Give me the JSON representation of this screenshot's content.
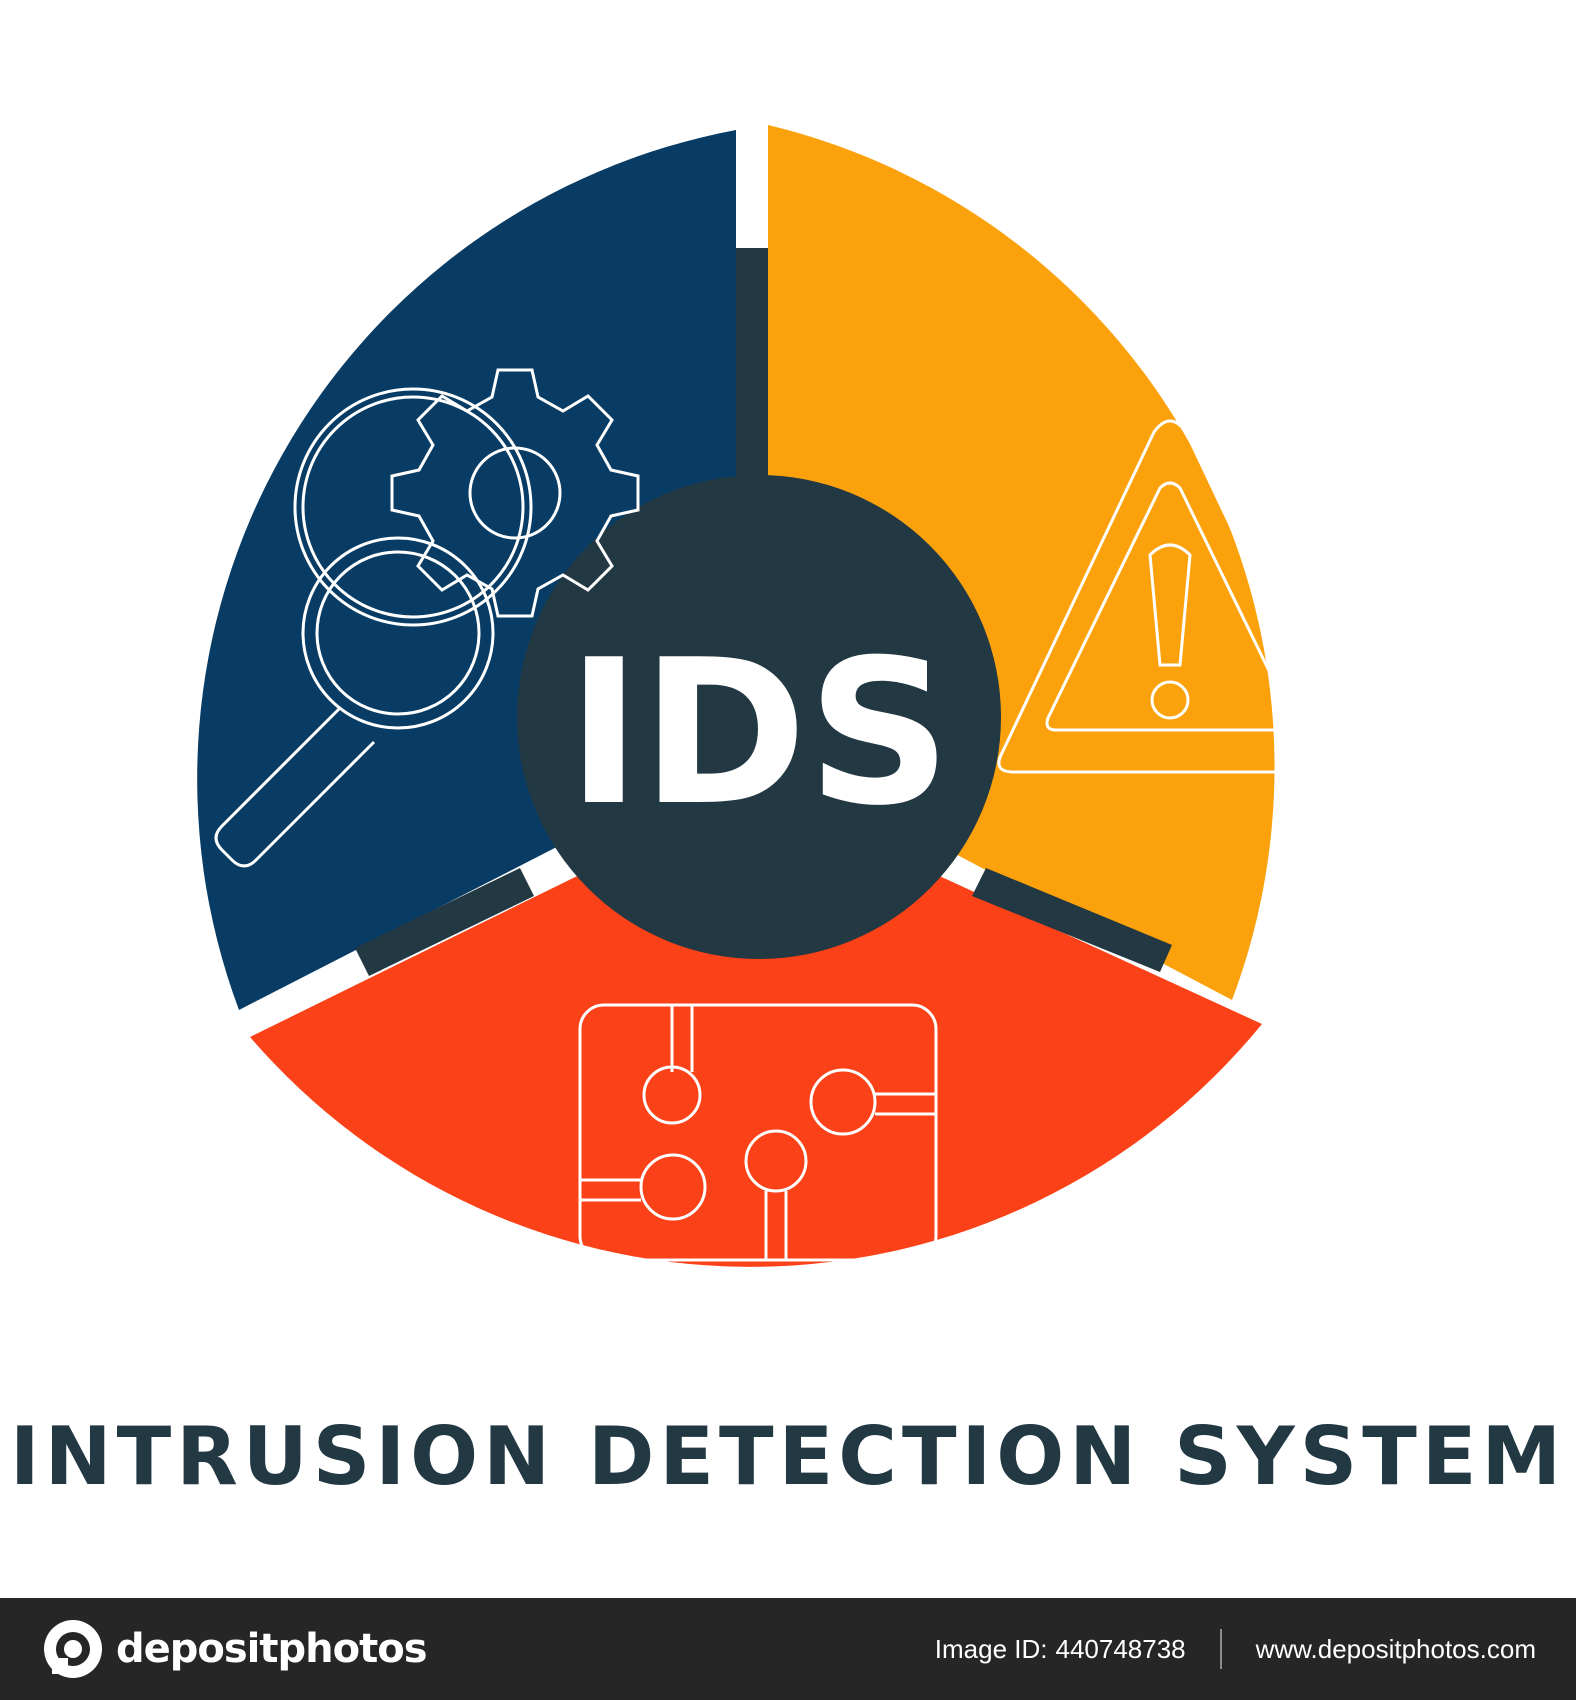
{
  "colors": {
    "blue": "#083c64",
    "orange": "#fba10c",
    "red": "#fb4117",
    "center": "#223842",
    "icon_stroke": "#ffffff",
    "footer_bg": "#262626"
  },
  "center": {
    "label": "IDS"
  },
  "segments": [
    {
      "color": "blue",
      "icon": "magnifier-gear-icon"
    },
    {
      "color": "orange",
      "icon": "warning-icon"
    },
    {
      "color": "red",
      "icon": "circuit-icon"
    }
  ],
  "title": "INTRUSION DETECTION SYSTEM",
  "footer": {
    "logo_text": "depositphotos",
    "logo_icon": "camera-lens-icon",
    "image_id_label": "Image ID:",
    "image_id": "440748738",
    "website": "www.depositphotos.com"
  }
}
